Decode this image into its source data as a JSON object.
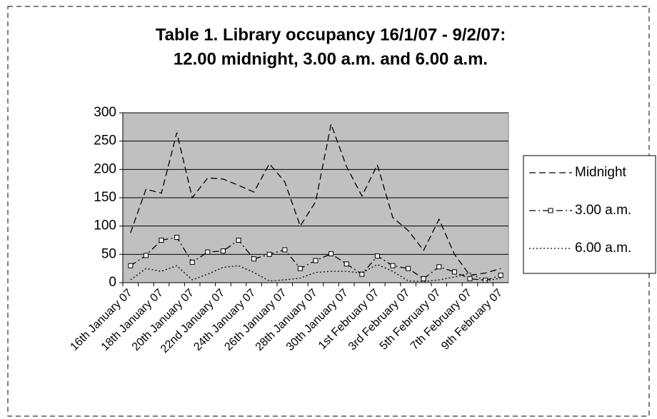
{
  "chart_data": {
    "type": "line",
    "title": [
      "Table 1. Library occupancy 16/1/07 - 9/2/07:",
      "12.00 midnight, 3.00 a.m. and 6.00 a.m."
    ],
    "categories": [
      "16th January 07",
      null,
      "18th January 07",
      null,
      "20th January 07",
      null,
      "22nd January 07",
      null,
      "24th January 07",
      null,
      "26th January 07",
      null,
      "28th January 07",
      null,
      "30th January 07",
      null,
      "1st February 07",
      null,
      "3rd February 07",
      null,
      "5th February 07",
      null,
      "7th February 07",
      null,
      "9th February 07"
    ],
    "series": [
      {
        "name": "Midnight",
        "color": "#000000",
        "dash": "9,5",
        "marker": "none",
        "values": [
          88,
          165,
          158,
          265,
          150,
          185,
          183,
          172,
          160,
          210,
          178,
          100,
          143,
          280,
          205,
          153,
          208,
          115,
          92,
          57,
          112,
          50,
          13,
          17,
          25
        ]
      },
      {
        "name": "3.00 a.m.",
        "color": "#000000",
        "dash": "9,4,2,4",
        "marker": "square",
        "values": [
          30,
          48,
          75,
          80,
          36,
          54,
          56,
          75,
          42,
          50,
          58,
          25,
          39,
          51,
          33,
          15,
          47,
          30,
          25,
          7,
          28,
          19,
          7,
          4,
          13
        ]
      },
      {
        "name": "6.00 a.m.",
        "color": "#000000",
        "dash": "2,3",
        "marker": "none",
        "values": [
          5,
          25,
          20,
          30,
          5,
          15,
          27,
          30,
          18,
          3,
          5,
          8,
          18,
          20,
          20,
          17,
          32,
          20,
          3,
          2,
          5,
          10,
          17,
          3,
          8
        ]
      }
    ],
    "ylim": [
      0,
      300
    ],
    "yticks": [
      0,
      50,
      100,
      150,
      200,
      250,
      300
    ],
    "grid": true,
    "plot_background": "#c0c0c0",
    "legend": "right"
  }
}
